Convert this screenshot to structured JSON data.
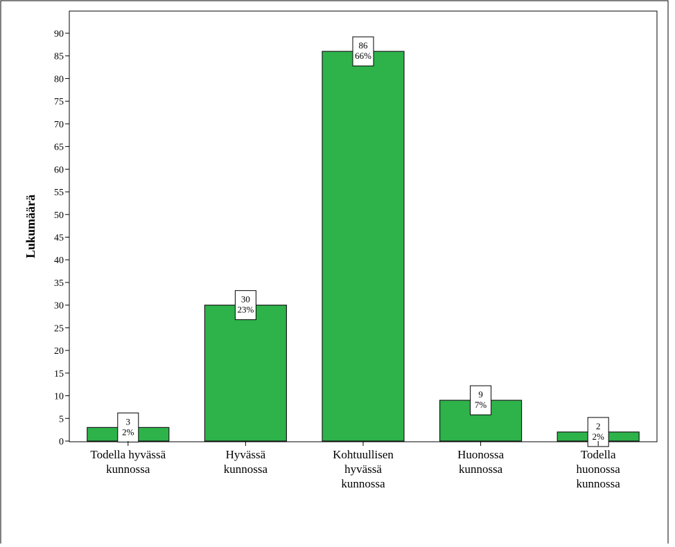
{
  "chart_data": {
    "type": "bar",
    "title": "",
    "xlabel": "",
    "ylabel": "Lukumäärä",
    "ylim": [
      0,
      90
    ],
    "yticks": [
      0,
      5,
      10,
      15,
      20,
      25,
      30,
      35,
      40,
      45,
      50,
      55,
      60,
      65,
      70,
      75,
      80,
      85,
      90
    ],
    "grid": false,
    "categories": [
      [
        "Todella hyvässä",
        "kunnossa"
      ],
      [
        "Hyvässä",
        "kunnossa"
      ],
      [
        "Kohtuullisen",
        "hyvässä",
        "kunnossa"
      ],
      [
        "Huonossa",
        "kunnossa"
      ],
      [
        "Todella",
        "huonossa",
        "kunnossa"
      ]
    ],
    "values": [
      3,
      30,
      86,
      9,
      2
    ],
    "percent_labels": [
      "2%",
      "23%",
      "66%",
      "7%",
      "2%"
    ],
    "count_labels": [
      "3",
      "30",
      "86",
      "9",
      "2"
    ],
    "colors": {
      "bar_fill": "#2db34a",
      "bar_stroke": "#1a1a1a",
      "axis": "#000000",
      "label_box_fill": "#ffffff"
    }
  }
}
